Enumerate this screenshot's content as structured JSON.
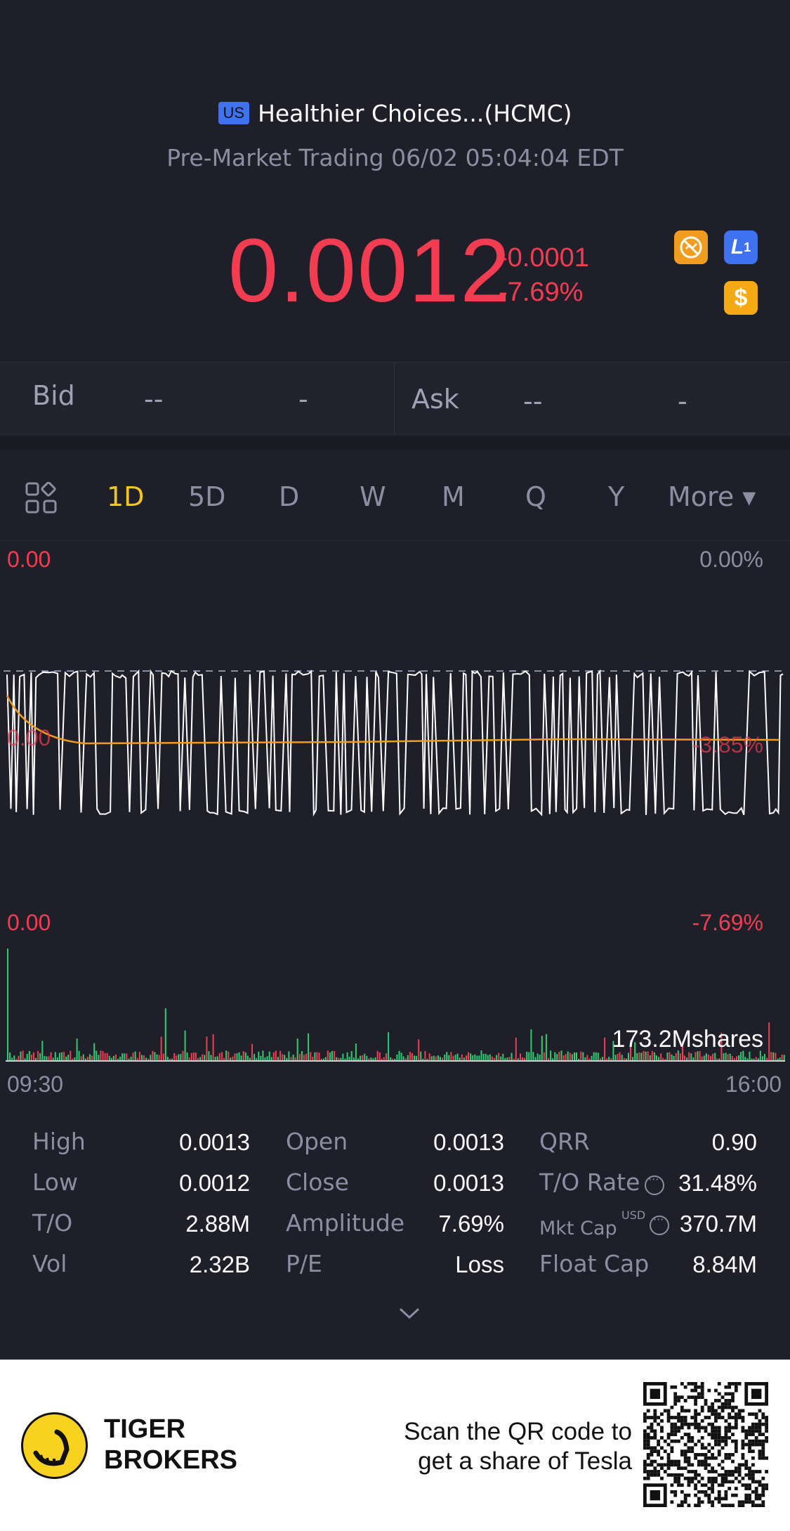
{
  "header": {
    "market_badge": "US",
    "stock_name": "Healthier Choices...(HCMC)",
    "session": "Pre-Market Trading 06/02 05:04:04 EDT",
    "price": "0.0012",
    "change": "-0.0001",
    "change_pct": "-7.69%",
    "badges": {
      "l1": "L",
      "l1_sub": "1",
      "dollar": "$"
    }
  },
  "quote": {
    "bid_label": "Bid",
    "bid_price": "--",
    "bid_size": "-",
    "ask_label": "Ask",
    "ask_price": "--",
    "ask_size": "-"
  },
  "tabs": [
    "1D",
    "5D",
    "D",
    "W",
    "M",
    "Q",
    "Y"
  ],
  "active_tab": "1D",
  "more_label": "More ▾",
  "chart": {
    "price_top_left": "0.00",
    "price_top_right": "0.00%",
    "price_mid_left": "0.00",
    "price_mid_right": "-3.85%",
    "price_bottom_left": "0.00",
    "price_bottom_right": "-7.69%",
    "volume_label": "173.2Mshares",
    "time_start": "09:30",
    "time_end": "16:00",
    "colors": {
      "price_line": "#ffffff",
      "avg_line": "#f29c1f",
      "up": "#2ecc71",
      "down": "#f23c52"
    }
  },
  "stats": [
    {
      "label": "High",
      "value": "0.0013"
    },
    {
      "label": "Open",
      "value": "0.0013"
    },
    {
      "label": "QRR",
      "value": "0.90"
    },
    {
      "label": "Low",
      "value": "0.0012"
    },
    {
      "label": "Close",
      "value": "0.0013"
    },
    {
      "label": "T/O Rate",
      "value": "31.48%"
    },
    {
      "label": "T/O",
      "value": "2.88M"
    },
    {
      "label": "Amplitude",
      "value": "7.69%"
    },
    {
      "label": "Mkt Cap",
      "value": "370.7M"
    },
    {
      "label": "Vol",
      "value": "2.32B"
    },
    {
      "label": "P/E",
      "value": "Loss"
    },
    {
      "label": "Float Cap",
      "value": "8.84M"
    }
  ],
  "mkt_cap_unit": "USD",
  "footer": {
    "brand_line1": "TIGER",
    "brand_line2": "BROKERS",
    "promo_line1": "Scan the QR code to",
    "promo_line2": "get a share of Tesla"
  }
}
